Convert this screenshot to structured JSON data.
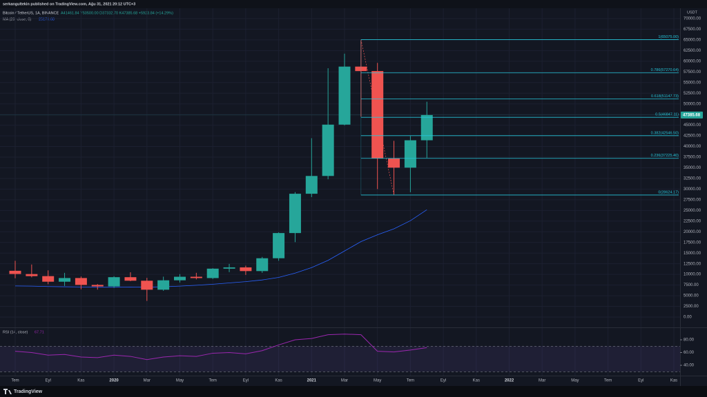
{
  "header": {
    "publisher": "serkangultekin published on TradingView.com, Ağu 31, 2021 20:12 UTC+3"
  },
  "chart_data": {
    "type": "candlestick",
    "symbol": "Bitcoin / TetherUS, 1A, BINANCE",
    "ohlc_text": "A41461.84 Y50500.00 D37332.70 K47385.68 +5923.84 (+14.29%)",
    "currency": "USDT",
    "up_color": "#26a69a",
    "down_color": "#ef5350",
    "categories": [
      "Tem",
      null,
      "Eyl",
      null,
      "Kas",
      null,
      "2020",
      null,
      "Mar",
      null,
      "May",
      null,
      "Tem",
      null,
      "Eyl",
      null,
      "Kas",
      null,
      "2021",
      null,
      "Mar",
      null,
      "May",
      null,
      "Tem",
      null,
      "Eyl",
      null,
      "Kas",
      null,
      "2022",
      null,
      "Mar",
      null,
      "May",
      null,
      "Tem",
      null,
      "Eyl",
      null,
      "Kas"
    ],
    "open": [
      10855,
      10080,
      9600,
      8290,
      9150,
      7540,
      7190,
      9350,
      8520,
      6410,
      8620,
      9450,
      9140,
      11350,
      11650,
      10780,
      13790,
      19700,
      28920,
      33090,
      45130,
      58740,
      57690,
      37250,
      35040,
      41461.84,
      null,
      null,
      null,
      null,
      null,
      null,
      null,
      null,
      null,
      null,
      null,
      null,
      null,
      null,
      null
    ],
    "high": [
      13200,
      12325,
      10950,
      10370,
      9510,
      7750,
      9575,
      10500,
      9190,
      9470,
      10070,
      10380,
      11450,
      12470,
      12050,
      14100,
      19860,
      29300,
      41950,
      58350,
      61780,
      64850,
      59600,
      41330,
      42450,
      50500,
      null,
      null,
      null,
      null,
      null,
      null,
      null,
      null,
      null,
      null,
      null,
      null,
      null,
      null,
      null
    ],
    "low": [
      9100,
      9320,
      7710,
      7300,
      6515,
      6430,
      6850,
      8410,
      3780,
      6150,
      8100,
      8830,
      8930,
      10530,
      9880,
      10370,
      13200,
      17570,
      28130,
      32300,
      44950,
      47000,
      30000,
      28800,
      29280,
      37332.7,
      null,
      null,
      null,
      null,
      null,
      null,
      null,
      null,
      null,
      null,
      null,
      null,
      null,
      null,
      null
    ],
    "close": [
      10100,
      9600,
      8290,
      9150,
      7540,
      7190,
      9350,
      8520,
      6410,
      8620,
      9450,
      9140,
      11350,
      11650,
      10780,
      13790,
      19700,
      28920,
      33090,
      45130,
      58740,
      57690,
      37250,
      35040,
      41460,
      47385.68,
      null,
      null,
      null,
      null,
      null,
      null,
      null,
      null,
      null,
      null,
      null,
      null,
      null,
      null,
      null
    ],
    "ma": {
      "label": "MA (20, close, 0)",
      "value": 25173.68,
      "color": "#2962ff",
      "values": [
        7300,
        7250,
        7150,
        7100,
        7050,
        7000,
        7000,
        7050,
        7000,
        7100,
        7250,
        7450,
        7700,
        8000,
        8300,
        8700,
        9300,
        10300,
        11600,
        13300,
        15500,
        17700,
        19300,
        20700,
        22600,
        25173.68,
        null,
        null,
        null,
        null,
        null,
        null,
        null,
        null,
        null,
        null,
        null,
        null,
        null,
        null,
        null
      ]
    },
    "ylim": [
      -2425,
      72420
    ],
    "yticks": [
      {
        "value": 0,
        "label": "0.00"
      },
      {
        "value": 2500,
        "label": "2500.00"
      },
      {
        "value": 5000,
        "label": "5000.00"
      },
      {
        "value": 7500,
        "label": "7500.00"
      },
      {
        "value": 10000,
        "label": "10000.00"
      },
      {
        "value": 12500,
        "label": "12500.00"
      },
      {
        "value": 15000,
        "label": "15000.00"
      },
      {
        "value": 17500,
        "label": "17500.00"
      },
      {
        "value": 20000,
        "label": "20000.00"
      },
      {
        "value": 22500,
        "label": "22500.00"
      },
      {
        "value": 25000,
        "label": "25000.00"
      },
      {
        "value": 27500,
        "label": "27500.00"
      },
      {
        "value": 30000,
        "label": "30000.00"
      },
      {
        "value": 32500,
        "label": "32500.00"
      },
      {
        "value": 35000,
        "label": "35000.00"
      },
      {
        "value": 37500,
        "label": "37500.00"
      },
      {
        "value": 40000,
        "label": "40000.00"
      },
      {
        "value": 42500,
        "label": "42500.00"
      },
      {
        "value": 45000,
        "label": "45000.00"
      },
      {
        "value": 47500,
        "label": "47500.00"
      },
      {
        "value": 50000,
        "label": "50000.00"
      },
      {
        "value": 52500,
        "label": "52500.00"
      },
      {
        "value": 55000,
        "label": "55000.00"
      },
      {
        "value": 57500,
        "label": "57500.00"
      },
      {
        "value": 60000,
        "label": "60000.00"
      },
      {
        "value": 62500,
        "label": "62500.00"
      },
      {
        "value": 65000,
        "label": "65000.00"
      },
      {
        "value": 67500,
        "label": "67500.00"
      },
      {
        "value": 70000,
        "label": "70000.00"
      }
    ],
    "fib_color": "#26c6da",
    "fib_levels": [
      {
        "label": "1(65075.00)",
        "value": 65075
      },
      {
        "label": "0.786(57270.64)",
        "value": 57270.64
      },
      {
        "label": "0.618(51147.73)",
        "value": 51147.73
      },
      {
        "label": "0.5(46847.11)",
        "value": 46847.11
      },
      {
        "label": "0.382(42546.50)",
        "value": 42546.5
      },
      {
        "label": "0.236(37225.40)",
        "value": 37225.4
      },
      {
        "label": "0(28624.17)",
        "value": 28624.17
      }
    ],
    "rsi": {
      "label": "RSI (14, close)",
      "value": 67.71,
      "color": "#9c27b0",
      "values": [
        62,
        60,
        56,
        57,
        53,
        52,
        56,
        54,
        49,
        53,
        55,
        54,
        59,
        60,
        58,
        63,
        72,
        80,
        82,
        88,
        89,
        88,
        62,
        61,
        64,
        67.71,
        null,
        null,
        null,
        null,
        null,
        null,
        null,
        null,
        null,
        null,
        null,
        null,
        null,
        null,
        null
      ],
      "ylim": [
        23.8,
        98.4
      ],
      "yticks": [
        {
          "value": 80,
          "label": "80.00"
        },
        {
          "value": 60,
          "label": "60.00"
        },
        {
          "value": 40,
          "label": "40.00"
        }
      ],
      "bands": [
        70,
        30
      ]
    }
  },
  "footer": {
    "brand": "TradingView"
  }
}
